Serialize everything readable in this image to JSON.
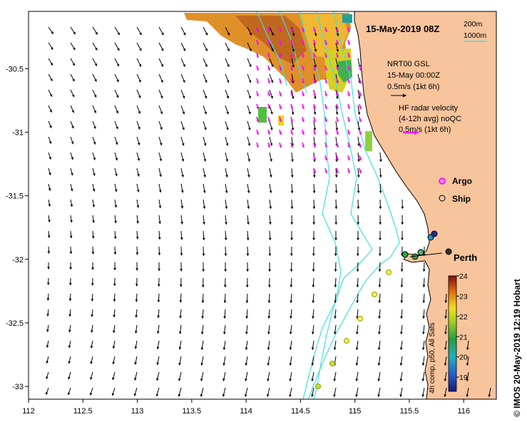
{
  "title": "15-May-2019 08Z",
  "depth_legend": {
    "shallow": "200m",
    "deep": "1000m"
  },
  "model_legend": {
    "line1": "NRT00 GSL",
    "line2": "15-May 00:00Z",
    "scale": "0.5m/s (1kt 6h)"
  },
  "radar_legend": {
    "line1": "HF radar velocity",
    "line2": "(4-12h avg) noQC",
    "scale": "0.5m/s (1kt 6h)"
  },
  "markers": {
    "argo": "Argo",
    "ship": "Ship"
  },
  "place": "Perth",
  "credit": "© IMOS 20-May-2019 12:19 Hobart",
  "colorbar": {
    "label": "4h comp, p50, All Sats",
    "ticks": [
      "24",
      "23",
      "22",
      "21",
      "20",
      "19"
    ],
    "min": 18.3,
    "max": 24
  },
  "x_axis": {
    "ticks": [
      "112",
      "112.5",
      "113",
      "113.5",
      "114",
      "114.5",
      "115",
      "115.5",
      "116"
    ],
    "range": [
      112,
      116.3
    ]
  },
  "y_axis": {
    "ticks": [
      "-30.5",
      "-31",
      "-31.5",
      "-32",
      "-32.5",
      "-33"
    ],
    "range": [
      -33.1,
      -30.05
    ]
  },
  "colors": {
    "land": "#f8c49c",
    "isobath": "#40e0e0",
    "radar": "#ff00ff",
    "frame": "#000000"
  }
}
